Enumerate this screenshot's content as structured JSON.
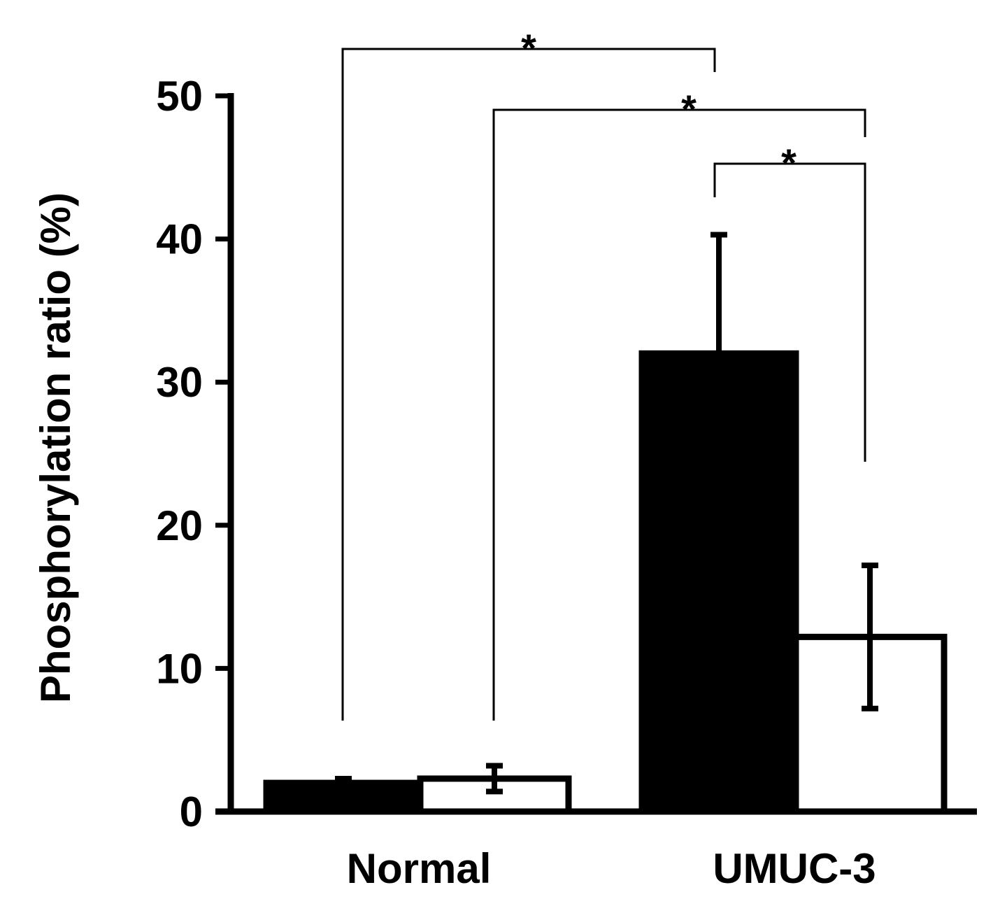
{
  "chart_data": {
    "type": "bar",
    "ylabel": "Phosphorylation ratio (%)",
    "xlabel": "",
    "ylim": [
      0,
      50
    ],
    "yticks": [
      0,
      10,
      20,
      30,
      40,
      50
    ],
    "categories": [
      "Normal",
      "UMUC-3"
    ],
    "series": [
      {
        "fill": "#000000",
        "values": [
          2.0,
          32.0
        ],
        "errors": [
          0.3,
          8.3
        ]
      },
      {
        "fill": "#ffffff",
        "values": [
          2.3,
          12.2
        ],
        "errors": [
          0.9,
          5.0
        ]
      }
    ],
    "grid": false,
    "legend": "none",
    "significance": [
      {
        "from": [
          0,
          0
        ],
        "to": [
          1,
          0
        ],
        "label": "*"
      },
      {
        "from": [
          0,
          1
        ],
        "to": [
          1,
          1
        ],
        "label": "*"
      },
      {
        "from": [
          1,
          0
        ],
        "to": [
          1,
          1
        ],
        "label": "*"
      }
    ]
  }
}
